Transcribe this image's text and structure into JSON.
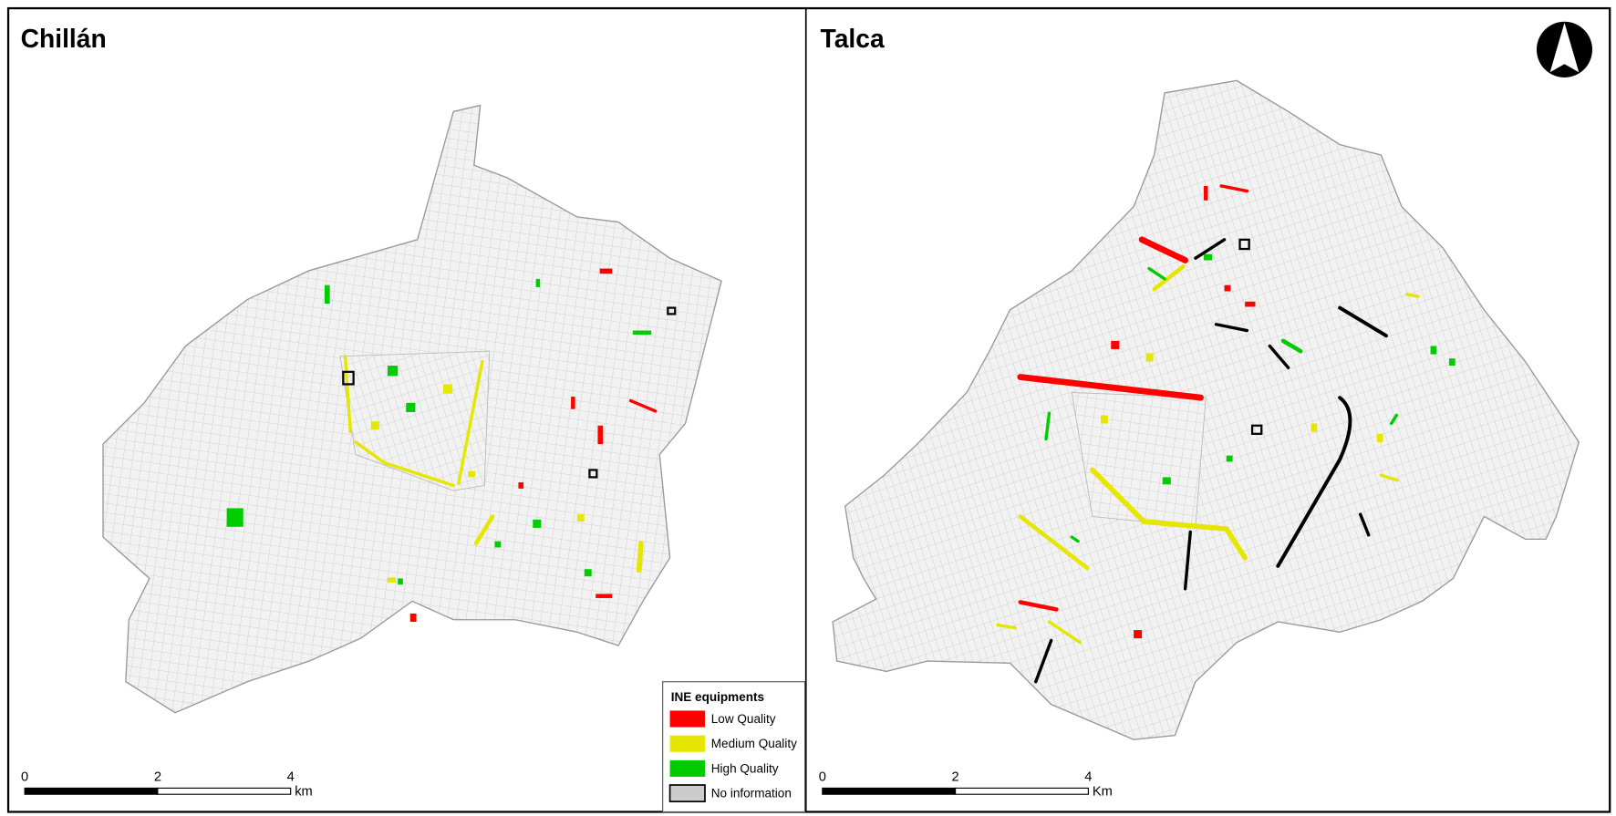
{
  "panels": [
    {
      "title": "Chillán",
      "scale_bar": {
        "labels": [
          "0",
          "2",
          "4"
        ],
        "unit": "km"
      }
    },
    {
      "title": "Talca",
      "scale_bar": {
        "labels": [
          "0",
          "2",
          "4"
        ],
        "unit": "Km"
      }
    }
  ],
  "legend": {
    "title": "INE equipments",
    "items": [
      {
        "label": "Low Quality",
        "color": "#ff0000"
      },
      {
        "label": "Medium Quality",
        "color": "#e6e600"
      },
      {
        "label": "High Quality",
        "color": "#00cc00"
      },
      {
        "label": "No information",
        "color": "#cccccc"
      }
    ]
  }
}
